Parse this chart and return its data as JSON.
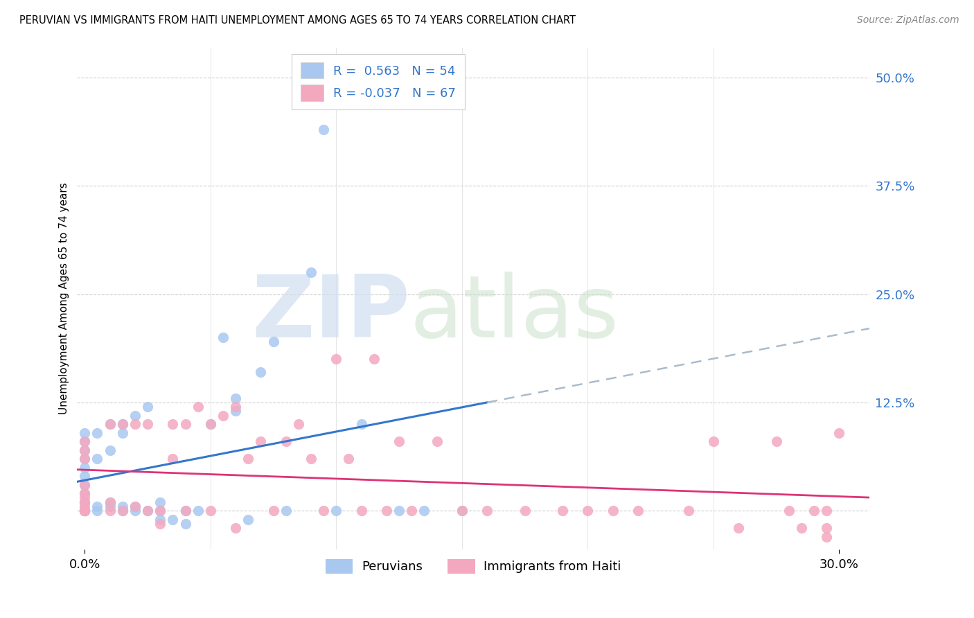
{
  "title": "PERUVIAN VS IMMIGRANTS FROM HAITI UNEMPLOYMENT AMONG AGES 65 TO 74 YEARS CORRELATION CHART",
  "source": "Source: ZipAtlas.com",
  "ylabel_label": "Unemployment Among Ages 65 to 74 years",
  "y_ticks": [
    0.0,
    0.125,
    0.25,
    0.375,
    0.5
  ],
  "y_tick_labels": [
    "",
    "12.5%",
    "25.0%",
    "37.5%",
    "50.0%"
  ],
  "xlim": [
    -0.003,
    0.312
  ],
  "ylim": [
    -0.045,
    0.535
  ],
  "peruvian_color": "#a8c8f0",
  "haiti_color": "#f4a8c0",
  "peruvian_line_color": "#3377cc",
  "haiti_line_color": "#dd3377",
  "dashed_color": "#aabbcc",
  "R_peruvian": 0.563,
  "N_peruvian": 54,
  "R_haiti": -0.037,
  "N_haiti": 67,
  "legend_labels": [
    "Peruvians",
    "Immigrants from Haiti"
  ],
  "peruvian_x": [
    0.0,
    0.0,
    0.0,
    0.0,
    0.0,
    0.0,
    0.0,
    0.0,
    0.0,
    0.0,
    0.0,
    0.0,
    0.0,
    0.0,
    0.0,
    0.005,
    0.005,
    0.005,
    0.005,
    0.01,
    0.01,
    0.01,
    0.01,
    0.015,
    0.015,
    0.015,
    0.015,
    0.02,
    0.02,
    0.02,
    0.025,
    0.025,
    0.03,
    0.03,
    0.03,
    0.035,
    0.04,
    0.04,
    0.045,
    0.05,
    0.055,
    0.06,
    0.06,
    0.065,
    0.07,
    0.075,
    0.08,
    0.09,
    0.095,
    0.1,
    0.11,
    0.125,
    0.135,
    0.15
  ],
  "peruvian_y": [
    0.0,
    0.0,
    0.0,
    0.0,
    0.0,
    0.01,
    0.01,
    0.02,
    0.03,
    0.04,
    0.05,
    0.06,
    0.07,
    0.08,
    0.09,
    0.0,
    0.005,
    0.06,
    0.09,
    0.005,
    0.01,
    0.07,
    0.1,
    0.0,
    0.005,
    0.09,
    0.1,
    0.0,
    0.005,
    0.11,
    0.0,
    0.12,
    -0.01,
    0.0,
    0.01,
    -0.01,
    -0.015,
    0.0,
    0.0,
    0.1,
    0.2,
    0.115,
    0.13,
    -0.01,
    0.16,
    0.195,
    0.0,
    0.275,
    0.44,
    0.0,
    0.1,
    0.0,
    0.0,
    0.0
  ],
  "haiti_x": [
    0.0,
    0.0,
    0.0,
    0.0,
    0.0,
    0.0,
    0.0,
    0.0,
    0.0,
    0.0,
    0.0,
    0.0,
    0.0,
    0.01,
    0.01,
    0.01,
    0.015,
    0.015,
    0.02,
    0.02,
    0.025,
    0.025,
    0.03,
    0.03,
    0.035,
    0.035,
    0.04,
    0.04,
    0.045,
    0.05,
    0.05,
    0.055,
    0.06,
    0.06,
    0.065,
    0.07,
    0.075,
    0.08,
    0.085,
    0.09,
    0.095,
    0.1,
    0.105,
    0.11,
    0.115,
    0.12,
    0.125,
    0.13,
    0.14,
    0.15,
    0.16,
    0.175,
    0.19,
    0.2,
    0.21,
    0.22,
    0.24,
    0.25,
    0.26,
    0.275,
    0.28,
    0.285,
    0.29,
    0.295,
    0.295,
    0.295,
    0.3
  ],
  "haiti_y": [
    0.0,
    0.0,
    0.0,
    0.0,
    0.0,
    0.005,
    0.01,
    0.015,
    0.02,
    0.03,
    0.06,
    0.07,
    0.08,
    0.0,
    0.01,
    0.1,
    0.0,
    0.1,
    0.005,
    0.1,
    0.0,
    0.1,
    0.0,
    -0.015,
    0.06,
    0.1,
    0.0,
    0.1,
    0.12,
    0.0,
    0.1,
    0.11,
    -0.02,
    0.12,
    0.06,
    0.08,
    0.0,
    0.08,
    0.1,
    0.06,
    0.0,
    0.175,
    0.06,
    0.0,
    0.175,
    0.0,
    0.08,
    0.0,
    0.08,
    0.0,
    0.0,
    0.0,
    0.0,
    0.0,
    0.0,
    0.0,
    0.0,
    0.08,
    -0.02,
    0.08,
    0.0,
    -0.02,
    0.0,
    -0.03,
    -0.02,
    0.0,
    0.09
  ]
}
